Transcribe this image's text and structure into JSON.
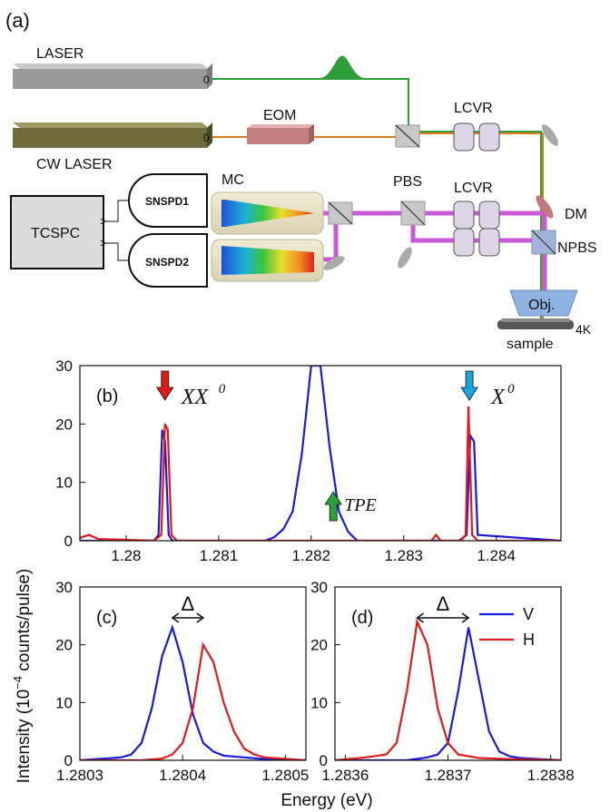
{
  "setup": {
    "panel_label": "(a)",
    "laser": "LASER",
    "cw_laser": "CW LASER",
    "eom": "EOM",
    "lcvr_top": "LCVR",
    "lcvr_mid": "LCVR",
    "pbs": "PBS",
    "mc": "MC",
    "snspd1": "SNSPD1",
    "snspd2": "SNSPD2",
    "tcspc": "TCSPC",
    "dm": "DM",
    "npbs": "NPBS",
    "obj": "Obj.",
    "sample": "sample",
    "temp": "4K",
    "colors": {
      "pulsed_beam": "#2e9e3a",
      "cw_beam": "#e07b1a",
      "detection_beam": "#c95ad6",
      "laser_body": "#9a9a9a",
      "cw_laser_body": "#6e6a3c"
    }
  },
  "chart_data": [
    {
      "type": "line",
      "panel_label": "(b)",
      "xlim": [
        1.2795,
        1.2847
      ],
      "ylim": [
        0,
        30
      ],
      "x_ticks": [
        "1.28",
        "1.281",
        "1.282",
        "1.283",
        "1.284"
      ],
      "y_ticks": [
        "0",
        "10",
        "20",
        "30"
      ],
      "annotations": {
        "xx0": "XX",
        "xx0_sup": "0",
        "x0": "X",
        "x0_sup": "0",
        "tpe": "TPE"
      },
      "series": [
        {
          "color": "#1a1adc",
          "x": [
            1.2795,
            1.2803,
            1.28035,
            1.28039,
            1.28042,
            1.28046,
            1.2805,
            1.2815,
            1.2816,
            1.2817,
            1.2818,
            1.2819,
            1.282,
            1.2821,
            1.2822,
            1.2823,
            1.2824,
            1.2825,
            1.2836,
            1.28368,
            1.28372,
            1.28376,
            1.2838,
            1.2847
          ],
          "y": [
            0,
            0,
            1,
            19,
            17,
            1,
            0,
            0,
            0.6,
            2,
            5,
            15,
            30,
            30,
            16,
            5,
            1.5,
            0,
            0,
            1,
            18,
            17,
            1,
            0
          ]
        },
        {
          "color": "#e01a1a",
          "x": [
            1.2795,
            1.2796,
            1.2797,
            1.2803,
            1.28038,
            1.28042,
            1.28045,
            1.28049,
            1.28055,
            1.2833,
            1.28335,
            1.2834,
            1.28362,
            1.28367,
            1.2837,
            1.28374,
            1.2838,
            1.2847
          ],
          "y": [
            0.5,
            1,
            0.3,
            0,
            1,
            20,
            19,
            1,
            0,
            0,
            1,
            0,
            0,
            1,
            23,
            1,
            0,
            0
          ]
        }
      ]
    },
    {
      "type": "line",
      "panel_label": "(c)",
      "xlim": [
        1.2803,
        1.28052
      ],
      "ylim": [
        0,
        30
      ],
      "x_ticks": [
        "1.2803",
        "1.2804",
        "1.2805"
      ],
      "y_ticks": [
        "0",
        "10",
        "20",
        "30"
      ],
      "delta": "Δ",
      "series": [
        {
          "name": "V",
          "color": "#1a1adc",
          "x": [
            1.2803,
            1.28034,
            1.28035,
            1.28036,
            1.28037,
            1.28038,
            1.28039,
            1.2804,
            1.28041,
            1.28042,
            1.28043,
            1.28044,
            1.28046,
            1.28048,
            1.28052
          ],
          "y": [
            0,
            0.5,
            1,
            3,
            9,
            18,
            23,
            17,
            8,
            3,
            1.5,
            0.8,
            0.5,
            0.2,
            0
          ]
        },
        {
          "name": "H",
          "color": "#e01a1a",
          "x": [
            1.2803,
            1.28036,
            1.28038,
            1.28039,
            1.2804,
            1.28041,
            1.28042,
            1.28043,
            1.28044,
            1.28045,
            1.28046,
            1.28047,
            1.28048,
            1.28052
          ],
          "y": [
            0,
            0,
            0.3,
            1,
            3,
            9,
            20,
            17,
            10,
            5,
            2,
            1,
            0.5,
            0
          ]
        }
      ]
    },
    {
      "type": "line",
      "panel_label": "(d)",
      "xlim": [
        1.28359,
        1.28381
      ],
      "ylim": [
        0,
        30
      ],
      "x_ticks": [
        "1.2836",
        "1.2837",
        "1.2838"
      ],
      "y_ticks": [
        "0",
        "10",
        "20",
        "30"
      ],
      "delta": "Δ",
      "series": [
        {
          "name": "V",
          "color": "#1a1adc",
          "x": [
            1.28359,
            1.28366,
            1.28368,
            1.28369,
            1.2837,
            1.28371,
            1.28372,
            1.28373,
            1.28374,
            1.28375,
            1.28376,
            1.28377,
            1.28381
          ],
          "y": [
            0,
            0,
            0.5,
            1,
            3,
            12,
            23,
            14,
            5,
            1.5,
            0.7,
            0.4,
            0
          ]
        },
        {
          "name": "H",
          "color": "#e01a1a",
          "x": [
            1.28359,
            1.28362,
            1.28364,
            1.28365,
            1.28366,
            1.28367,
            1.28368,
            1.28369,
            1.2837,
            1.28371,
            1.28373,
            1.28376,
            1.28381
          ],
          "y": [
            0,
            0.5,
            1,
            3,
            12,
            24,
            20,
            9,
            3,
            1,
            0.4,
            0.2,
            0
          ]
        }
      ]
    }
  ],
  "ylabel": "Intensity  (10",
  "ylabel_sup": "−4",
  "ylabel_tail": " counts/pulse)",
  "xlabel": "Energy (eV)"
}
